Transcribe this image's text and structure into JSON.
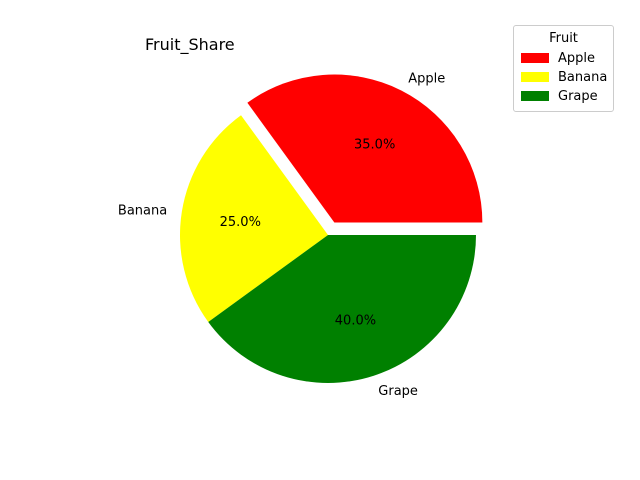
{
  "chart_data": {
    "type": "pie",
    "title": "Fruit_Share",
    "categories": [
      "Apple",
      "Banana",
      "Grape"
    ],
    "values": [
      35,
      25,
      40
    ],
    "autopct": [
      "35.0%",
      "25.0%",
      "40.0%"
    ],
    "colors": [
      "#ff0000",
      "#ffff00",
      "#008000"
    ],
    "exploded": [
      "Apple"
    ],
    "legend": {
      "title": "Fruit",
      "placement": "top-right",
      "entries": [
        "Apple",
        "Banana",
        "Grape"
      ]
    }
  }
}
